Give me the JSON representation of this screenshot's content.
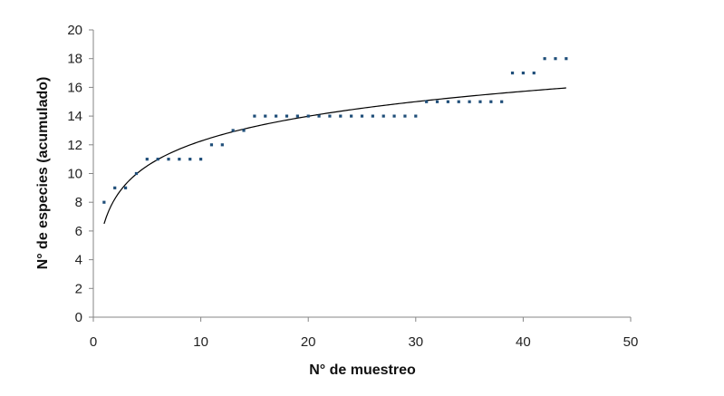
{
  "chart_data": {
    "type": "scatter",
    "xlabel": "N° de muestreo",
    "ylabel": "N° de especies (acumulado)",
    "xlim": [
      0,
      50
    ],
    "ylim": [
      0,
      20
    ],
    "x_ticks": [
      0,
      10,
      20,
      30,
      40,
      50
    ],
    "y_ticks": [
      0,
      2,
      4,
      6,
      8,
      10,
      12,
      14,
      16,
      18,
      20
    ],
    "grid": false,
    "legend": "none",
    "series": [
      {
        "kind": "points",
        "color": "#1F4E79",
        "points": [
          [
            1,
            8
          ],
          [
            2,
            9
          ],
          [
            3,
            9
          ],
          [
            4,
            10
          ],
          [
            5,
            11
          ],
          [
            6,
            11
          ],
          [
            7,
            11
          ],
          [
            8,
            11
          ],
          [
            9,
            11
          ],
          [
            10,
            11
          ],
          [
            11,
            12
          ],
          [
            12,
            12
          ],
          [
            13,
            13
          ],
          [
            14,
            13
          ],
          [
            15,
            14
          ],
          [
            16,
            14
          ],
          [
            17,
            14
          ],
          [
            18,
            14
          ],
          [
            19,
            14
          ],
          [
            20,
            14
          ],
          [
            21,
            14
          ],
          [
            22,
            14
          ],
          [
            23,
            14
          ],
          [
            24,
            14
          ],
          [
            25,
            14
          ],
          [
            26,
            14
          ],
          [
            27,
            14
          ],
          [
            28,
            14
          ],
          [
            29,
            14
          ],
          [
            30,
            14
          ],
          [
            31,
            15
          ],
          [
            32,
            15
          ],
          [
            33,
            15
          ],
          [
            34,
            15
          ],
          [
            35,
            15
          ],
          [
            36,
            15
          ],
          [
            37,
            15
          ],
          [
            38,
            15
          ],
          [
            39,
            17
          ],
          [
            40,
            17
          ],
          [
            41,
            17
          ],
          [
            42,
            18
          ],
          [
            43,
            18
          ],
          [
            44,
            18
          ]
        ]
      },
      {
        "kind": "logarithmic-trendline",
        "color": "#000000",
        "x_range": [
          1,
          44
        ],
        "a": 2.5,
        "b": 6.5
      }
    ]
  }
}
